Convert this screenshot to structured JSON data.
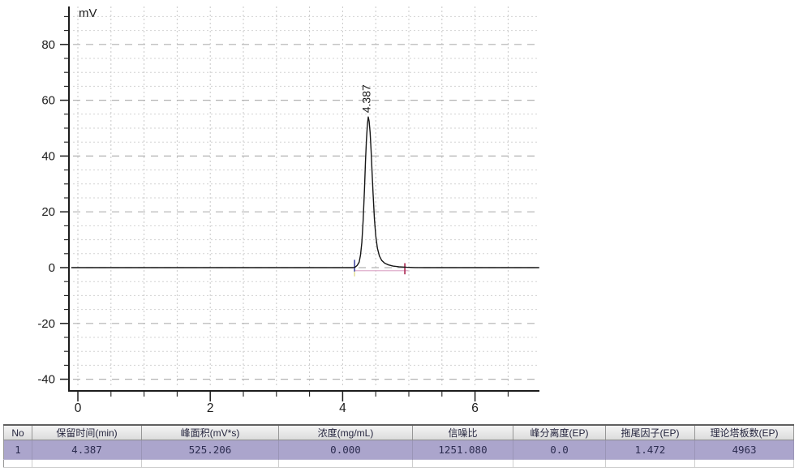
{
  "chart_data": {
    "type": "line",
    "title": "",
    "xlabel": "",
    "ylabel": "mV",
    "xlim": [
      0,
      6.97
    ],
    "ylim": [
      -44,
      92
    ],
    "x_major_ticks": [
      0,
      2,
      4,
      6
    ],
    "x_minor_step": 0.5,
    "y_major_ticks": [
      -40,
      -20,
      0,
      20,
      40,
      60,
      80
    ],
    "y_minor_step": 5,
    "grid": "dashed major+minor, both axes",
    "legend": "none",
    "series": [
      {
        "name": "detector signal",
        "color": "#161616",
        "points": [
          [
            -0.1,
            0
          ],
          [
            4.16,
            0
          ],
          [
            4.19,
            0.2
          ],
          [
            4.22,
            0.8
          ],
          [
            4.25,
            2.0
          ],
          [
            4.27,
            4.5
          ],
          [
            4.29,
            9.0
          ],
          [
            4.31,
            17.0
          ],
          [
            4.33,
            28.0
          ],
          [
            4.345,
            38.0
          ],
          [
            4.36,
            46.0
          ],
          [
            4.375,
            51.5
          ],
          [
            4.387,
            54.0
          ],
          [
            4.4,
            52.5
          ],
          [
            4.415,
            48.5
          ],
          [
            4.43,
            42.0
          ],
          [
            4.445,
            34.0
          ],
          [
            4.46,
            26.5
          ],
          [
            4.48,
            17.5
          ],
          [
            4.5,
            11.5
          ],
          [
            4.525,
            7.0
          ],
          [
            4.555,
            4.2
          ],
          [
            4.59,
            2.6
          ],
          [
            4.635,
            1.6
          ],
          [
            4.69,
            1.0
          ],
          [
            4.76,
            0.55
          ],
          [
            4.85,
            0.3
          ],
          [
            4.97,
            0.12
          ],
          [
            5.1,
            0.03
          ],
          [
            5.25,
            0
          ],
          [
            6.97,
            0
          ]
        ]
      }
    ],
    "peak_annotations": [
      {
        "label": "4.387",
        "retention_time_min": 4.387,
        "apex_mV": 54,
        "integration_start_min": 4.18,
        "integration_end_min": 4.94,
        "baseline_end_min": 4.99,
        "baseline_mV": -1.1,
        "baseline_color": "#dfaecb",
        "start_marker_color": "#5a5fae",
        "start_sub_marker_color": "#e6e09a",
        "end_marker_color": "#b23b60"
      }
    ]
  },
  "results_table": {
    "columns": [
      "No",
      "保留时间(min)",
      "峰面积(mV*s)",
      "浓度(mg/mL)",
      "信噪比",
      "峰分离度(EP)",
      "拖尾因子(EP)",
      "理论塔板数(EP)"
    ],
    "rows": [
      [
        "1",
        "4.387",
        "525.206",
        "0.000",
        "1251.080",
        "0.0",
        "1.472",
        "4963"
      ]
    ],
    "selected_row_color": "#aba5cc",
    "header_bg_color": "#e3e3e3"
  }
}
